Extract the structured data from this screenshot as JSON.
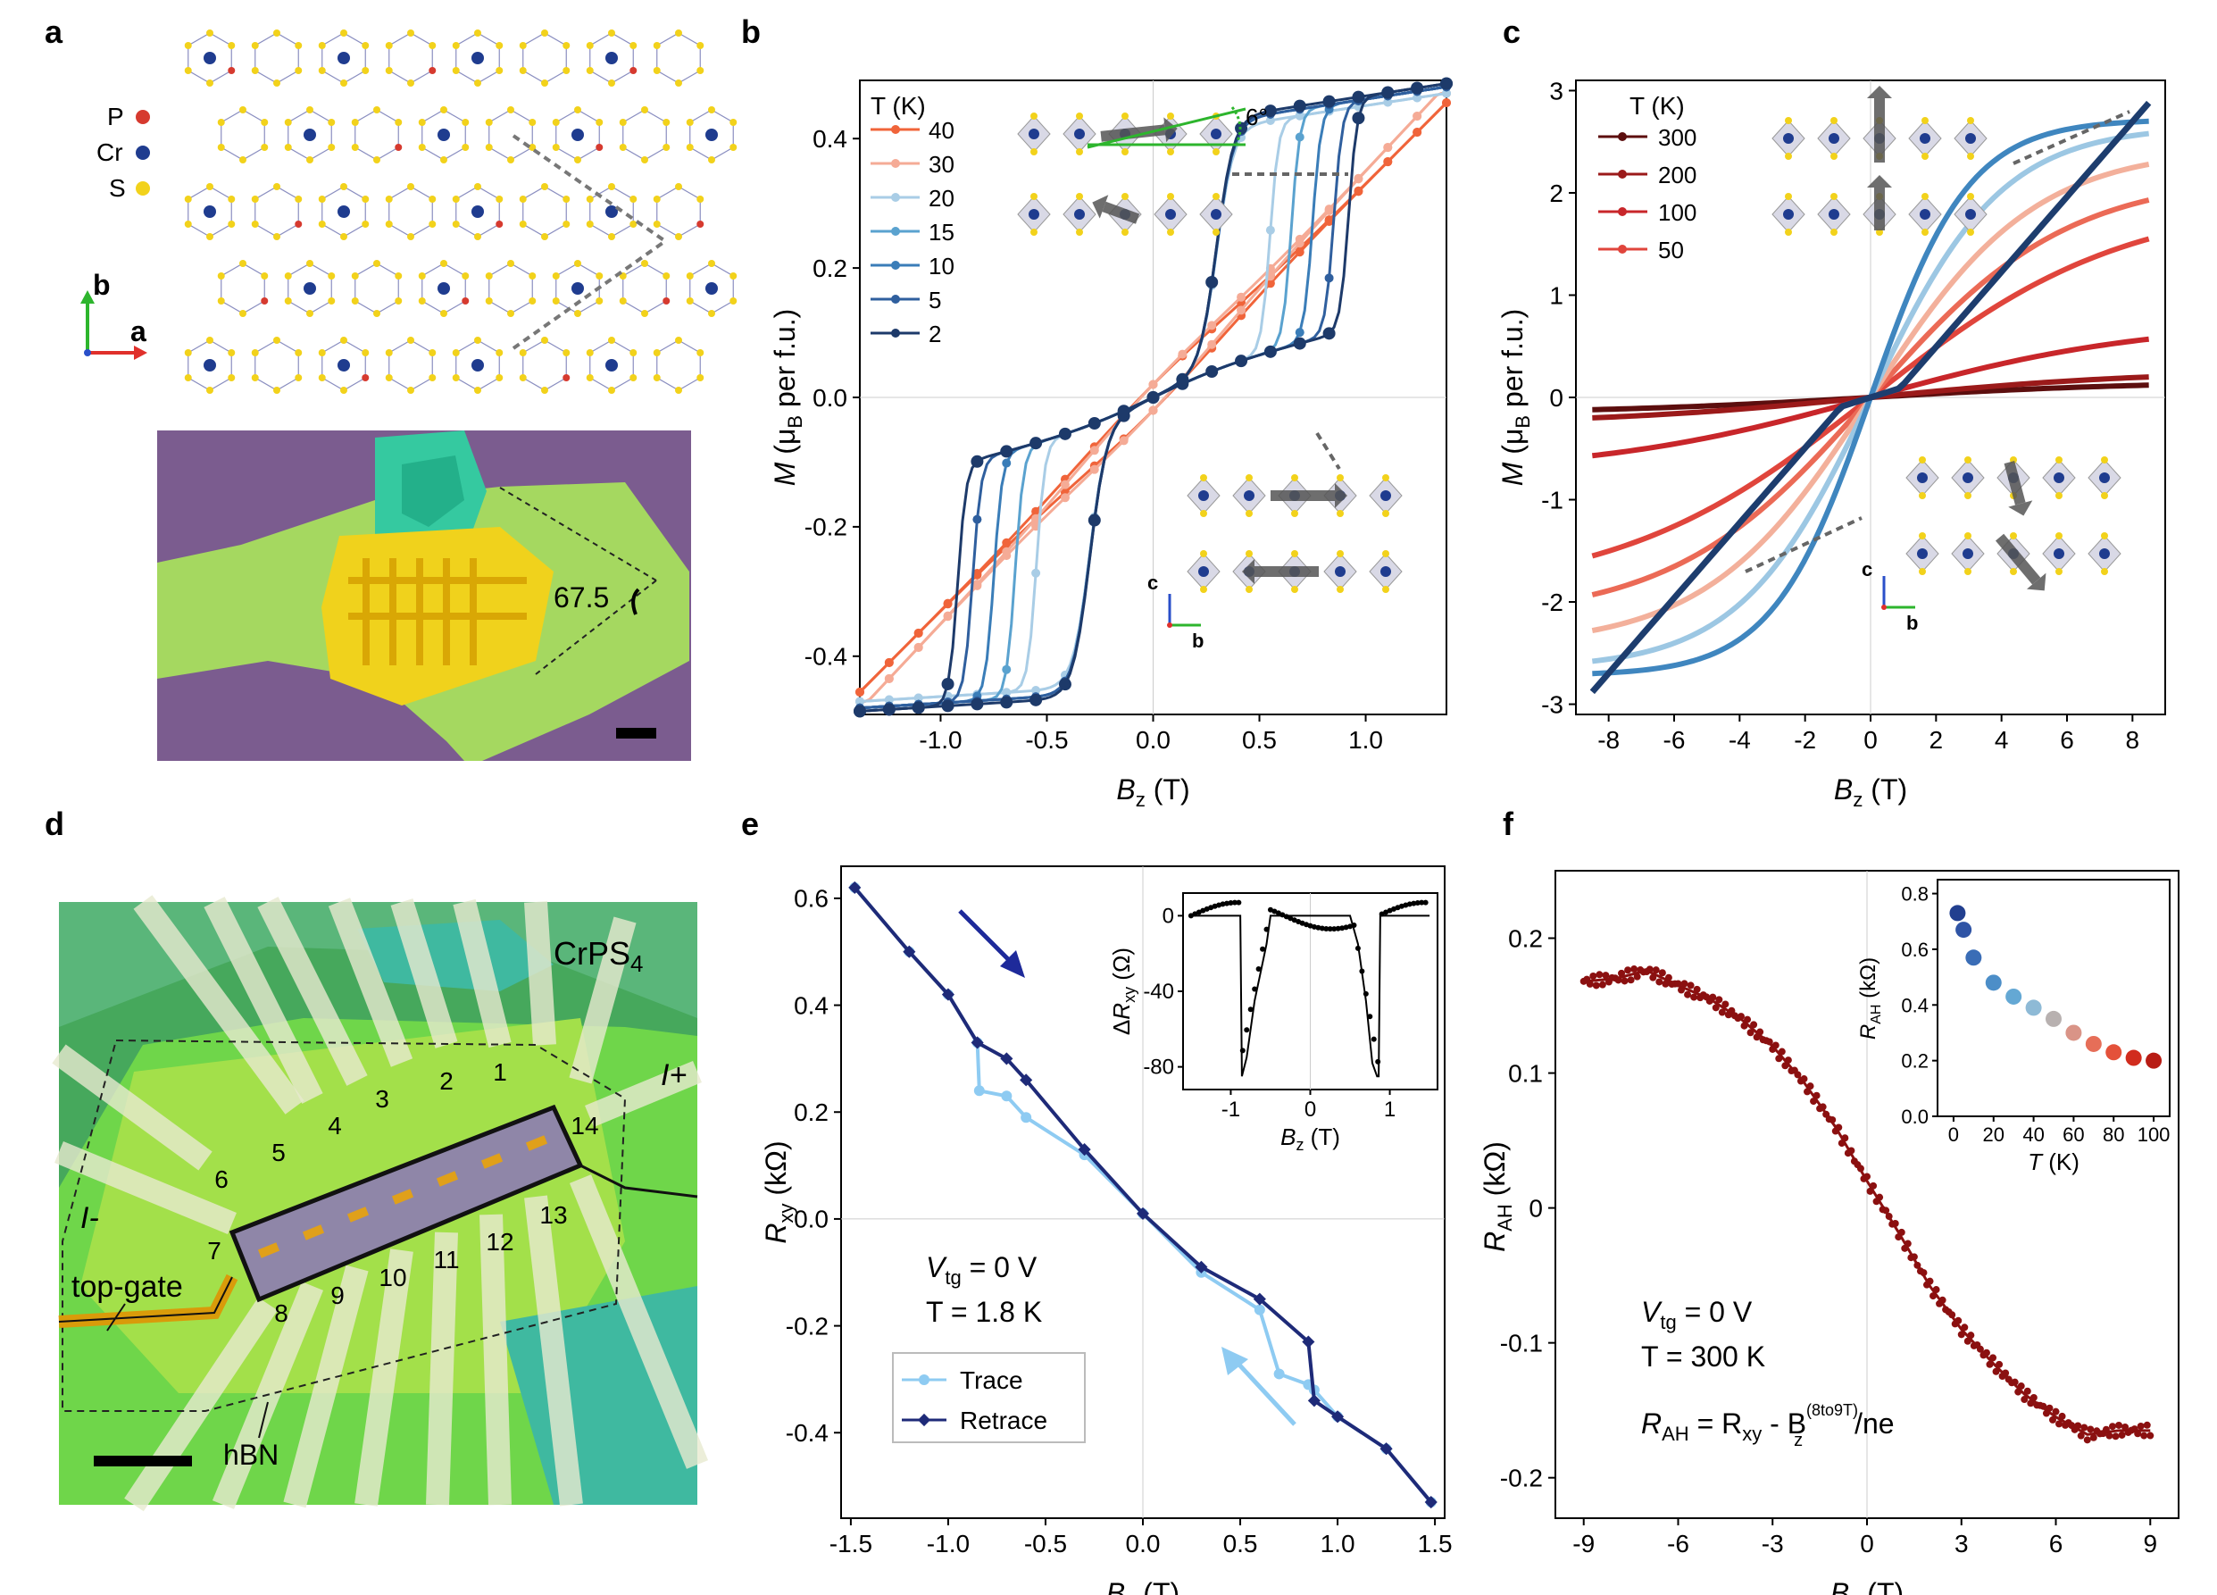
{
  "panels": {
    "a": {
      "letter": "a",
      "legend": [
        {
          "symbol": "P",
          "color": "#d63a2f"
        },
        {
          "symbol": "Cr",
          "color": "#1f3c8f"
        },
        {
          "symbol": "S",
          "color": "#f2d21b"
        }
      ],
      "axis_b": "b",
      "axis_a": "a",
      "angle_label": "67.5"
    },
    "b": {
      "letter": "b",
      "inset_angle": "6°",
      "axis_c": "c",
      "axis_b": "b"
    },
    "c": {
      "letter": "c",
      "axis_c": "c",
      "axis_b": "b"
    },
    "d": {
      "letter": "d",
      "material": "CrPS",
      "material_sub": "4",
      "contacts": [
        "1",
        "2",
        "3",
        "4",
        "5",
        "6",
        "7",
        "8",
        "9",
        "10",
        "11",
        "12",
        "13",
        "14"
      ],
      "i_minus": "I-",
      "i_plus": "I+",
      "top_gate": "top-gate",
      "hbn": "hBN"
    },
    "e": {
      "letter": "e",
      "vtg": "V",
      "vtg_sub": "tg",
      "vtg_val": " = 0 V",
      "temp": "T = 1.8 K",
      "legend": [
        "Trace",
        "Retrace"
      ]
    },
    "f": {
      "letter": "f",
      "vtg": "V",
      "vtg_sub": "tg",
      "vtg_val": " = 0 V",
      "temp": "T = 300 K",
      "formula": "R",
      "formula_sub": "AH",
      "formula_mid": " = R",
      "formula_sub2": "xy",
      "formula_b": " - B",
      "formula_sup": "(8to9T)",
      "formula_sub3": "z",
      "formula_end": "/ne"
    }
  },
  "chart_data": [
    {
      "id": "b",
      "type": "line",
      "title": "",
      "xlabel": "B_z (T)",
      "ylabel": "M (μ_B per f.u.)",
      "xlim": [
        -1.38,
        1.38
      ],
      "ylim": [
        -0.49,
        0.49
      ],
      "xticks": [
        "-1.0",
        "-0.5",
        "0.0",
        "0.5",
        "1.0"
      ],
      "yticks": [
        "-0.4",
        "-0.2",
        "0.0",
        "0.2",
        "0.4"
      ],
      "legend_title": "T (K)",
      "legend_position": "top-left",
      "series": [
        {
          "name": "40",
          "color": "#f0643a"
        },
        {
          "name": "30",
          "color": "#f5ab96"
        },
        {
          "name": "20",
          "color": "#a9cde6"
        },
        {
          "name": "15",
          "color": "#5aa2cf"
        },
        {
          "name": "10",
          "color": "#3a7db8"
        },
        {
          "name": "5",
          "color": "#2f5f9e"
        },
        {
          "name": "2",
          "color": "#1d3a6a"
        }
      ],
      "notes": "Hysteretic M-B loops; switching near ±0.9 T at low T, nearly linear at 40 K"
    },
    {
      "id": "c",
      "type": "line",
      "title": "",
      "xlabel": "B_z (T)",
      "ylabel": "M (μ_B per f.u.)",
      "xlim": [
        -9,
        9
      ],
      "ylim": [
        -3.1,
        3.1
      ],
      "xticks": [
        "-8",
        "-6",
        "-4",
        "-2",
        "0",
        "2",
        "4",
        "6",
        "8"
      ],
      "yticks": [
        "-3",
        "-2",
        "-1",
        "0",
        "1",
        "2",
        "3"
      ],
      "legend_title": "T (K)",
      "legend_position": "top-left",
      "series": [
        {
          "name": "300",
          "color": "#5c0e0e",
          "m_at_8_5T": 0.12
        },
        {
          "name": "200",
          "color": "#9b1a1a",
          "m_at_8_5T": 0.2
        },
        {
          "name": "100",
          "color": "#c8262a",
          "m_at_8_5T": 0.57
        },
        {
          "name": "50",
          "color": "#e0453c",
          "m_at_8_5T": 1.55
        },
        {
          "color": "#eb6a56",
          "m_at_8_5T": 1.93
        },
        {
          "color": "#f3b09b",
          "m_at_8_5T": 2.28
        },
        {
          "color": "#9cc7e3",
          "m_at_8_5T": 2.58
        },
        {
          "color": "#3f86bf",
          "m_at_8_5T": 2.7
        },
        {
          "color": "#1d3d6e",
          "m_at_8_5T": 2.88
        }
      ]
    },
    {
      "id": "e",
      "type": "line",
      "title": "",
      "xlabel": "B_z (T)",
      "ylabel": "R_xy (kΩ)",
      "xlim": [
        -1.55,
        1.55
      ],
      "ylim": [
        -0.56,
        0.66
      ],
      "xticks": [
        "-1.5",
        "-1.0",
        "-0.5",
        "0.0",
        "0.5",
        "1.0",
        "1.5"
      ],
      "yticks": [
        "-0.4",
        "-0.2",
        "0.0",
        "0.2",
        "0.4",
        "0.6"
      ],
      "series": [
        {
          "name": "Trace",
          "color": "#8ecbf2",
          "x": [
            -1.48,
            -1.2,
            -1.0,
            -0.85,
            -0.84,
            -0.7,
            -0.6,
            -0.3,
            0.0,
            0.3,
            0.6,
            0.7,
            0.85,
            0.88,
            1.0,
            1.25,
            1.48
          ],
          "y": [
            0.62,
            0.5,
            0.42,
            0.33,
            0.24,
            0.23,
            0.19,
            0.12,
            0.01,
            -0.1,
            -0.17,
            -0.29,
            -0.31,
            -0.32,
            -0.37,
            -0.43,
            -0.53
          ]
        },
        {
          "name": "Retrace",
          "color": "#1e2a78",
          "x": [
            -1.48,
            -1.2,
            -1.0,
            -0.85,
            -0.7,
            -0.6,
            -0.3,
            0.0,
            0.3,
            0.6,
            0.85,
            0.88,
            1.0,
            1.25,
            1.48
          ],
          "y": [
            0.62,
            0.5,
            0.42,
            0.33,
            0.3,
            0.26,
            0.13,
            0.01,
            -0.09,
            -0.15,
            -0.23,
            -0.34,
            -0.37,
            -0.43,
            -0.53
          ]
        }
      ],
      "inset": {
        "xlabel": "B_z (T)",
        "ylabel": "ΔR_xy (Ω)",
        "xlim": [
          -1.6,
          1.6
        ],
        "ylim": [
          -92,
          12
        ],
        "xticks": [
          "-1",
          "0",
          "1"
        ],
        "yticks": [
          "0",
          "-40",
          "-80"
        ],
        "x": [
          -1.5,
          -1.0,
          -0.88,
          -0.86,
          -0.8,
          -0.7,
          -0.6,
          -0.55,
          -0.5,
          0.0,
          0.5,
          0.6,
          0.7,
          0.78,
          0.84,
          0.86,
          0.88,
          1.0,
          1.5
        ],
        "y": [
          0,
          0,
          0,
          -85,
          -75,
          -45,
          -25,
          -15,
          0,
          0,
          0,
          -15,
          -45,
          -78,
          -85,
          -85,
          0,
          0,
          0
        ]
      }
    },
    {
      "id": "f",
      "type": "line",
      "title": "",
      "xlabel": "B_z (T)",
      "ylabel": "R_AH (kΩ)",
      "xlim": [
        -9.9,
        9.9
      ],
      "ylim": [
        -0.23,
        0.25
      ],
      "xticks": [
        "-9",
        "-6",
        "-3",
        "0",
        "3",
        "6",
        "9"
      ],
      "yticks": [
        "-0.2",
        "-0.1",
        "0",
        "0.1",
        "0.2"
      ],
      "series": [
        {
          "name": "R_AH",
          "color": "#8b1010",
          "x": [
            -9,
            -8,
            -7,
            -6,
            -5,
            -4,
            -3,
            -2,
            -1,
            0,
            1,
            2,
            3,
            4,
            5,
            6,
            7,
            8,
            9
          ],
          "y": [
            0.168,
            0.17,
            0.176,
            0.165,
            0.155,
            0.14,
            0.12,
            0.093,
            0.06,
            0.02,
            -0.018,
            -0.058,
            -0.09,
            -0.115,
            -0.138,
            -0.155,
            -0.168,
            -0.165,
            -0.165
          ]
        }
      ],
      "inset": {
        "type": "scatter",
        "xlabel": "T (K)",
        "ylabel": "R_AH (kΩ)",
        "xlim": [
          -8,
          108
        ],
        "ylim": [
          0,
          0.85
        ],
        "xticks": [
          "0",
          "20",
          "40",
          "60",
          "80",
          "100"
        ],
        "yticks": [
          "0.0",
          "0.2",
          "0.4",
          "0.6",
          "0.8"
        ],
        "x": [
          2,
          5,
          10,
          20,
          30,
          40,
          50,
          60,
          70,
          80,
          90,
          100
        ],
        "y": [
          0.73,
          0.67,
          0.57,
          0.48,
          0.43,
          0.39,
          0.35,
          0.3,
          0.26,
          0.23,
          0.21,
          0.2
        ],
        "colors": [
          "#223f8f",
          "#2f54a5",
          "#3a6db6",
          "#4c8ec8",
          "#64a8d4",
          "#8ebad6",
          "#b8b1b0",
          "#d99487",
          "#e66e58",
          "#e4513a",
          "#d12c1e",
          "#b81c14"
        ]
      }
    }
  ]
}
